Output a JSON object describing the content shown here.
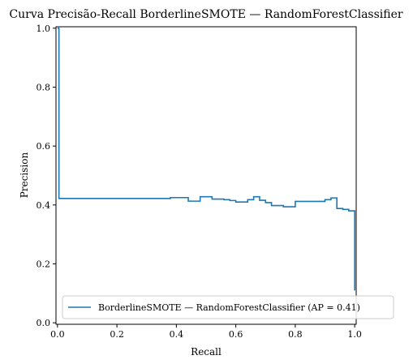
{
  "chart_data": {
    "type": "line",
    "title": "Curva Precisão-Recall BorderlineSMOTE — RandomForestClassifier",
    "xlabel": "Recall",
    "ylabel": "Precision",
    "xlim": [
      -0.005,
      1.005
    ],
    "ylim": [
      -0.005,
      1.005
    ],
    "xticks": [
      0.0,
      0.2,
      0.4,
      0.6,
      0.8,
      1.0
    ],
    "xtick_labels": [
      "0.0",
      "0.2",
      "0.4",
      "0.6",
      "0.8",
      "1.0"
    ],
    "yticks": [
      0.0,
      0.2,
      0.4,
      0.6,
      0.8,
      1.0
    ],
    "ytick_labels": [
      "0.0",
      "0.2",
      "0.4",
      "0.6",
      "0.8",
      "1.0"
    ],
    "grid": false,
    "legend_position": "lower right",
    "series": [
      {
        "name": "BorderlineSMOTE — RandomForestClassifier (AP = 0.41)",
        "color": "#1f77b4",
        "drawstyle": "steps-post",
        "x": [
          0.0,
          0.0,
          0.005,
          0.38,
          0.44,
          0.48,
          0.52,
          0.56,
          0.58,
          0.6,
          0.64,
          0.66,
          0.68,
          0.7,
          0.72,
          0.76,
          0.8,
          0.9,
          0.92,
          0.94,
          0.96,
          0.98,
          1.0,
          1.0
        ],
        "y": [
          1.0,
          1.0,
          0.422,
          0.425,
          0.413,
          0.428,
          0.42,
          0.418,
          0.415,
          0.41,
          0.418,
          0.428,
          0.416,
          0.408,
          0.398,
          0.394,
          0.412,
          0.418,
          0.424,
          0.388,
          0.385,
          0.38,
          0.38,
          0.11
        ]
      }
    ]
  }
}
